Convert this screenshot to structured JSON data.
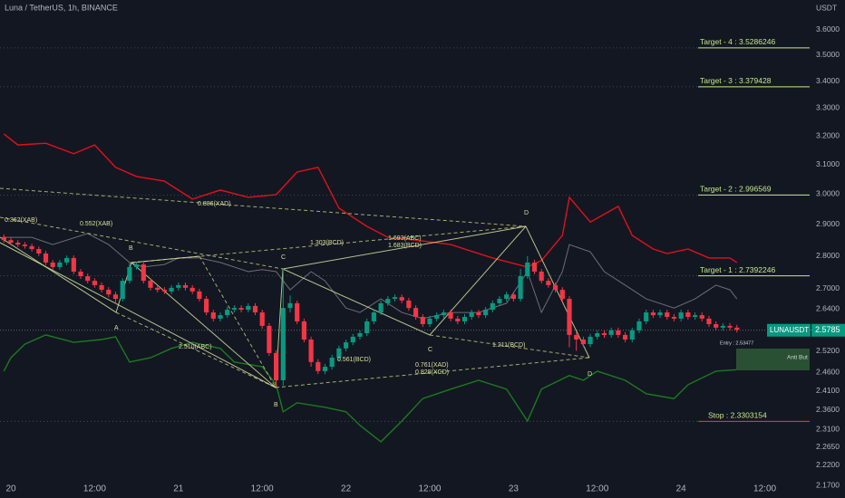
{
  "chart_data": {
    "type": "candlestick",
    "title": "Luna / TetherUS, 1h, BINANCE",
    "y_unit": "USDT",
    "up_color": "#089981",
    "down_color": "#f23645",
    "ohlc": [
      [
        2.86,
        2.868,
        2.842,
        2.85
      ],
      [
        2.85,
        2.858,
        2.834,
        2.842
      ],
      [
        2.842,
        2.85,
        2.828,
        2.836
      ],
      [
        2.836,
        2.844,
        2.823,
        2.831
      ],
      [
        2.831,
        2.839,
        2.814,
        2.822
      ],
      [
        2.822,
        2.83,
        2.8,
        2.808
      ],
      [
        2.808,
        2.816,
        2.772,
        2.78
      ],
      [
        2.78,
        2.788,
        2.758,
        2.766
      ],
      [
        2.766,
        2.788,
        2.758,
        2.78
      ],
      [
        2.78,
        2.802,
        2.772,
        2.794
      ],
      [
        2.794,
        2.802,
        2.744,
        2.752
      ],
      [
        2.752,
        2.76,
        2.73,
        2.738
      ],
      [
        2.738,
        2.746,
        2.716,
        2.724
      ],
      [
        2.724,
        2.732,
        2.703,
        2.711
      ],
      [
        2.711,
        2.719,
        2.689,
        2.697
      ],
      [
        2.697,
        2.705,
        2.675,
        2.683
      ],
      [
        2.683,
        2.691,
        2.655,
        2.67
      ],
      [
        2.67,
        2.732,
        2.662,
        2.724
      ],
      [
        2.724,
        2.78,
        2.716,
        2.766
      ],
      [
        2.766,
        2.782,
        2.758,
        2.774
      ],
      [
        2.774,
        2.782,
        2.716,
        2.724
      ],
      [
        2.724,
        2.732,
        2.695,
        2.703
      ],
      [
        2.703,
        2.711,
        2.689,
        2.697
      ],
      [
        2.697,
        2.705,
        2.684,
        2.692
      ],
      [
        2.692,
        2.711,
        2.684,
        2.703
      ],
      [
        2.703,
        2.719,
        2.695,
        2.711
      ],
      [
        2.711,
        2.719,
        2.695,
        2.703
      ],
      [
        2.703,
        2.711,
        2.684,
        2.692
      ],
      [
        2.692,
        2.7,
        2.662,
        2.67
      ],
      [
        2.67,
        2.678,
        2.622,
        2.63
      ],
      [
        2.63,
        2.638,
        2.604,
        2.612
      ],
      [
        2.612,
        2.63,
        2.604,
        2.622
      ],
      [
        2.622,
        2.646,
        2.614,
        2.638
      ],
      [
        2.638,
        2.651,
        2.63,
        2.643
      ],
      [
        2.643,
        2.651,
        2.63,
        2.638
      ],
      [
        2.638,
        2.657,
        2.63,
        2.649
      ],
      [
        2.649,
        2.657,
        2.622,
        2.63
      ],
      [
        2.63,
        2.638,
        2.583,
        2.591
      ],
      [
        2.591,
        2.599,
        2.506,
        2.514
      ],
      [
        2.514,
        2.522,
        2.42,
        2.439
      ],
      [
        2.439,
        2.762,
        2.425,
        2.643
      ],
      [
        2.643,
        2.68,
        2.63,
        2.657
      ],
      [
        2.657,
        2.665,
        2.596,
        2.604
      ],
      [
        2.604,
        2.612,
        2.544,
        2.552
      ],
      [
        2.552,
        2.56,
        2.476,
        2.489
      ],
      [
        2.489,
        2.497,
        2.456,
        2.464
      ],
      [
        2.464,
        2.484,
        2.456,
        2.476
      ],
      [
        2.476,
        2.509,
        2.468,
        2.501
      ],
      [
        2.501,
        2.535,
        2.493,
        2.527
      ],
      [
        2.527,
        2.552,
        2.519,
        2.544
      ],
      [
        2.544,
        2.568,
        2.536,
        2.56
      ],
      [
        2.56,
        2.578,
        2.552,
        2.57
      ],
      [
        2.57,
        2.612,
        2.562,
        2.604
      ],
      [
        2.604,
        2.638,
        2.596,
        2.63
      ],
      [
        2.63,
        2.665,
        2.622,
        2.657
      ],
      [
        2.657,
        2.678,
        2.649,
        2.67
      ],
      [
        2.67,
        2.683,
        2.662,
        2.675
      ],
      [
        2.675,
        2.683,
        2.657,
        2.665
      ],
      [
        2.665,
        2.673,
        2.635,
        2.643
      ],
      [
        2.643,
        2.651,
        2.609,
        2.617
      ],
      [
        2.617,
        2.625,
        2.588,
        2.596
      ],
      [
        2.596,
        2.62,
        2.588,
        2.612
      ],
      [
        2.612,
        2.63,
        2.604,
        2.622
      ],
      [
        2.622,
        2.638,
        2.614,
        2.63
      ],
      [
        2.63,
        2.638,
        2.604,
        2.612
      ],
      [
        2.612,
        2.62,
        2.596,
        2.604
      ],
      [
        2.604,
        2.625,
        2.596,
        2.617
      ],
      [
        2.617,
        2.638,
        2.609,
        2.63
      ],
      [
        2.63,
        2.638,
        2.614,
        2.622
      ],
      [
        2.622,
        2.646,
        2.614,
        2.638
      ],
      [
        2.638,
        2.665,
        2.63,
        2.657
      ],
      [
        2.657,
        2.678,
        2.649,
        2.67
      ],
      [
        2.67,
        2.691,
        2.662,
        2.683
      ],
      [
        2.683,
        2.691,
        2.662,
        2.67
      ],
      [
        2.67,
        2.76,
        2.662,
        2.738
      ],
      [
        2.738,
        2.8,
        2.73,
        2.78
      ],
      [
        2.78,
        2.788,
        2.744,
        2.752
      ],
      [
        2.752,
        2.76,
        2.716,
        2.724
      ],
      [
        2.724,
        2.732,
        2.703,
        2.711
      ],
      [
        2.711,
        2.719,
        2.689,
        2.697
      ],
      [
        2.697,
        2.705,
        2.662,
        2.67
      ],
      [
        2.67,
        2.678,
        2.53,
        2.565
      ],
      [
        2.565,
        2.573,
        2.52,
        2.552
      ],
      [
        2.552,
        2.56,
        2.531,
        2.539
      ],
      [
        2.539,
        2.568,
        2.531,
        2.56
      ],
      [
        2.56,
        2.578,
        2.552,
        2.57
      ],
      [
        2.57,
        2.578,
        2.557,
        2.565
      ],
      [
        2.565,
        2.586,
        2.557,
        2.578
      ],
      [
        2.578,
        2.586,
        2.557,
        2.565
      ],
      [
        2.565,
        2.573,
        2.544,
        2.552
      ],
      [
        2.552,
        2.586,
        2.544,
        2.578
      ],
      [
        2.578,
        2.612,
        2.57,
        2.604
      ],
      [
        2.604,
        2.638,
        2.596,
        2.63
      ],
      [
        2.63,
        2.638,
        2.614,
        2.622
      ],
      [
        2.622,
        2.638,
        2.614,
        2.63
      ],
      [
        2.63,
        2.638,
        2.609,
        2.617
      ],
      [
        2.617,
        2.625,
        2.604,
        2.612
      ],
      [
        2.612,
        2.638,
        2.604,
        2.63
      ],
      [
        2.63,
        2.638,
        2.609,
        2.617
      ],
      [
        2.617,
        2.63,
        2.609,
        2.622
      ],
      [
        2.622,
        2.63,
        2.604,
        2.612
      ],
      [
        2.612,
        2.62,
        2.588,
        2.596
      ],
      [
        2.596,
        2.604,
        2.578,
        2.586
      ],
      [
        2.586,
        2.599,
        2.578,
        2.591
      ],
      [
        2.591,
        2.599,
        2.578,
        2.586
      ],
      [
        2.586,
        2.594,
        2.572,
        2.58
      ]
    ],
    "xlim": [
      -0.56,
      115.68
    ],
    "xticks": [
      {
        "value": 1,
        "label": "20"
      },
      {
        "value": 13,
        "label": "12:00"
      },
      {
        "value": 25,
        "label": "21"
      },
      {
        "value": 37,
        "label": "12:00"
      },
      {
        "value": 49,
        "label": "22"
      },
      {
        "value": 61,
        "label": "12:00"
      },
      {
        "value": 73,
        "label": "23"
      },
      {
        "value": 85,
        "label": "12:00"
      },
      {
        "value": 97,
        "label": "24"
      },
      {
        "value": 109,
        "label": "12:00"
      }
    ],
    "ylim": [
      2.14,
      3.7215
    ],
    "log_scale": true,
    "yticks": [
      {
        "value": 3.6,
        "label": "3.6000"
      },
      {
        "value": 3.5,
        "label": "3.5000"
      },
      {
        "value": 3.4,
        "label": "3.4000"
      },
      {
        "value": 3.3,
        "label": "3.3000"
      },
      {
        "value": 3.2,
        "label": "3.2000"
      },
      {
        "value": 3.1,
        "label": "3.1000"
      },
      {
        "value": 3.0,
        "label": "3.0000"
      },
      {
        "value": 2.9,
        "label": "2.9000"
      },
      {
        "value": 2.8,
        "label": "2.8000"
      },
      {
        "value": 2.7,
        "label": "2.7000"
      },
      {
        "value": 2.64,
        "label": "2.6400"
      },
      {
        "value": 2.52,
        "label": "2.5200"
      },
      {
        "value": 2.46,
        "label": "2.4600"
      },
      {
        "value": 2.41,
        "label": "2.4100"
      },
      {
        "value": 2.36,
        "label": "2.3600"
      },
      {
        "value": 2.31,
        "label": "2.3100"
      },
      {
        "value": 2.265,
        "label": "2.2650"
      },
      {
        "value": 2.22,
        "label": "2.2200"
      },
      {
        "value": 2.17,
        "label": "2.1700"
      }
    ],
    "bands": [
      {
        "color": "#e0111b",
        "width": 1.4,
        "x": [
          0,
          2,
          6,
          10,
          13,
          16,
          19,
          23,
          27,
          31,
          35,
          39,
          42,
          45,
          48,
          52,
          55,
          59,
          64,
          70,
          75,
          77,
          80,
          81,
          84,
          88,
          90,
          93,
          95,
          98,
          101,
          104,
          105
        ],
        "values": [
          3.207,
          3.168,
          3.174,
          3.137,
          3.168,
          3.09,
          3.059,
          3.043,
          2.983,
          3.013,
          2.989,
          2.998,
          3.074,
          3.09,
          2.953,
          2.894,
          2.859,
          2.85,
          2.836,
          2.794,
          2.766,
          2.786,
          2.865,
          2.989,
          2.908,
          2.959,
          2.865,
          2.822,
          2.808,
          2.822,
          2.794,
          2.794,
          2.78
        ]
      },
      {
        "color": "#6b6e78",
        "width": 1,
        "x": [
          0,
          4,
          7,
          12,
          15,
          18,
          20,
          23,
          25,
          28,
          31,
          35,
          37,
          39,
          41,
          44,
          46,
          49,
          51,
          54,
          57,
          60,
          64,
          68,
          72,
          75,
          77,
          80,
          81,
          84,
          86,
          89,
          92,
          96,
          99,
          102,
          104,
          105
        ],
        "values": [
          2.859,
          2.859,
          2.836,
          2.871,
          2.836,
          2.78,
          2.766,
          2.774,
          2.794,
          2.794,
          2.78,
          2.752,
          2.758,
          2.752,
          2.697,
          2.752,
          2.724,
          2.643,
          2.63,
          2.67,
          2.63,
          2.612,
          2.63,
          2.63,
          2.657,
          2.752,
          2.63,
          2.752,
          2.836,
          2.813,
          2.752,
          2.711,
          2.67,
          2.643,
          2.67,
          2.711,
          2.697,
          2.67
        ]
      },
      {
        "color": "#1b7a1f",
        "width": 1.4,
        "x": [
          0,
          1,
          3,
          6,
          10,
          14,
          16,
          18,
          21,
          24,
          27,
          31,
          33,
          37,
          39,
          40,
          42,
          46,
          49,
          51,
          54,
          57,
          60,
          64,
          68,
          72,
          75,
          77,
          81,
          83,
          85,
          89,
          92,
          96,
          98,
          102,
          105
        ],
        "values": [
          2.464,
          2.501,
          2.539,
          2.565,
          2.544,
          2.552,
          2.56,
          2.489,
          2.501,
          2.527,
          2.544,
          2.527,
          2.489,
          2.476,
          2.427,
          2.355,
          2.379,
          2.367,
          2.355,
          2.32,
          2.278,
          2.331,
          2.39,
          2.415,
          2.439,
          2.415,
          2.331,
          2.415,
          2.452,
          2.439,
          2.464,
          2.439,
          2.403,
          2.39,
          2.427,
          2.464,
          2.468
        ]
      }
    ],
    "targets": [
      {
        "label": "Target - 4 : 3.5286246",
        "value": 3.5286246
      },
      {
        "label": "Target - 3 : 3.379428",
        "value": 3.379428
      },
      {
        "label": "Target - 2 : 2.996569",
        "value": 2.996569
      },
      {
        "label": "Target - 1 : 2.7392246",
        "value": 2.7392246
      },
      {
        "label": "Stop : 2.3303154",
        "value": 2.3303154
      }
    ],
    "last_price": {
      "symbol": "LUNAUSDT",
      "value": 2.5785
    },
    "entry_label": "Entry : 2.53477",
    "zone_label": "Anti But",
    "pattern_labels": [
      "A",
      "B",
      "C",
      "B",
      "D",
      "C",
      "D"
    ],
    "pattern_ratios": [
      "0.362(XAB)",
      "0.552(XAB)",
      "0.886(XAD)",
      "1.303(BCD)",
      "1.693(ABC)",
      "1.683(BCD)",
      "2.510(ABC)",
      "0.561(BCD)",
      "0.761(XAD)",
      "0.828(XCD)",
      "1.211(BCD)"
    ]
  }
}
